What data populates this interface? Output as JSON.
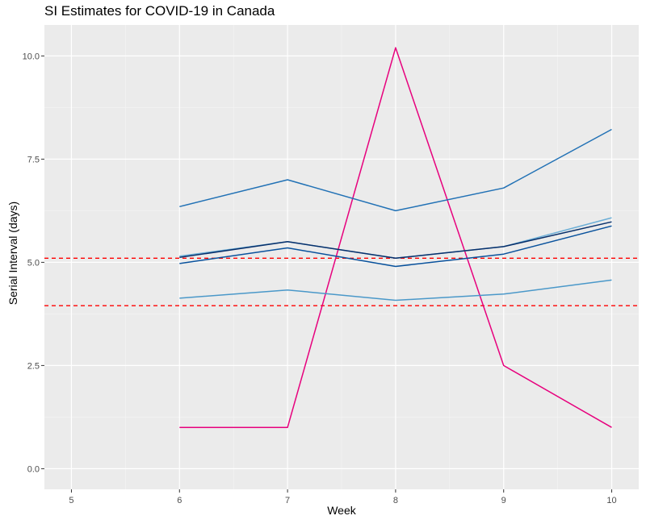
{
  "chart_data": {
    "type": "line",
    "title": "SI Estimates for COVID-19 in Canada",
    "xlabel": "Week",
    "ylabel": "Serial Interval (days)",
    "xlim": [
      4.75,
      10.25
    ],
    "ylim": [
      -0.5,
      10.75
    ],
    "x_ticks": [
      5,
      6,
      7,
      8,
      9,
      10
    ],
    "y_ticks": [
      0,
      2.5,
      5,
      7.5,
      10
    ],
    "y_tick_labels": [
      "0.0",
      "2.5",
      "5.0",
      "7.5",
      "10.0"
    ],
    "grid": true,
    "legend": "none",
    "x": [
      6,
      7,
      8,
      9,
      10
    ],
    "series": [
      {
        "color": "#e7007d",
        "values": [
          1.0,
          1.0,
          10.2,
          2.5,
          1.0
        ]
      },
      {
        "color": "#2171b5",
        "values": [
          6.35,
          7.0,
          6.25,
          6.8,
          8.22
        ]
      },
      {
        "color": "#6baed6",
        "values": [
          5.15,
          5.5,
          5.1,
          5.38,
          6.08
        ]
      },
      {
        "color": "#08306b",
        "values": [
          5.12,
          5.5,
          5.1,
          5.38,
          5.98
        ]
      },
      {
        "color": "#08519c",
        "values": [
          4.97,
          5.35,
          4.9,
          5.2,
          5.88
        ]
      },
      {
        "color": "#4a98c9",
        "values": [
          4.13,
          4.33,
          4.08,
          4.23,
          4.57
        ]
      }
    ],
    "reference_lines": [
      {
        "orientation": "horizontal",
        "y": 5.1,
        "style": "dashed",
        "color": "#ff0000"
      },
      {
        "orientation": "horizontal",
        "y": 3.95,
        "style": "dashed",
        "color": "#ff0000"
      }
    ]
  }
}
